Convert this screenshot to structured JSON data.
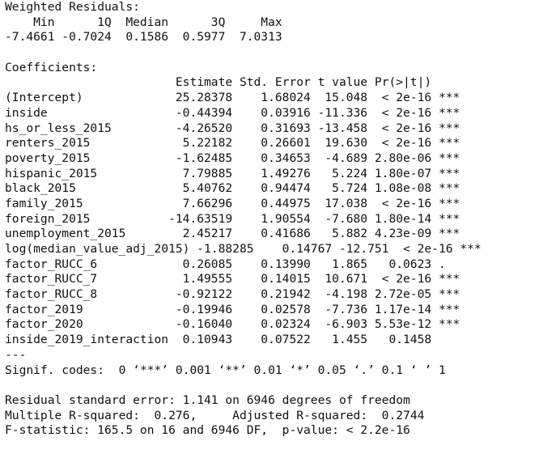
{
  "lines": [
    "Weighted Residuals:",
    "    Min      1Q  Median      3Q     Max ",
    "-7.4661 -0.7024  0.1586  0.5977  7.0313 ",
    "",
    "Coefficients:",
    "                        Estimate Std. Error t value Pr(>|t|)    ",
    "(Intercept)             25.28378    1.68024  15.048  < 2e-16 ***",
    "inside                  -0.44394    0.03916 -11.336  < 2e-16 ***",
    "hs_or_less_2015         -4.26520    0.31693 -13.458  < 2e-16 ***",
    "renters_2015             5.22182    0.26601  19.630  < 2e-16 ***",
    "poverty_2015            -1.62485    0.34653  -4.689 2.80e-06 ***",
    "hispanic_2015            7.79885    1.49276   5.224 1.80e-07 ***",
    "black_2015               5.40762    0.94474   5.724 1.08e-08 ***",
    "family_2015              7.66296    0.44975  17.038  < 2e-16 ***",
    "foreign_2015           -14.63519    1.90554  -7.680 1.80e-14 ***",
    "unemployment_2015        2.45217    0.41686   5.882 4.23e-09 ***",
    "log(median_value_adj_2015) -1.88285    0.14767 -12.751  < 2e-16 ***",
    "factor_RUCC_6            0.26085    0.13990   1.865   0.0623 .  ",
    "factor_RUCC_7            1.49555    0.14015  10.671  < 2e-16 ***",
    "factor_RUCC_8           -0.92122    0.21942  -4.198 2.72e-05 ***",
    "factor_2019             -0.19946    0.02578  -7.736 1.17e-14 ***",
    "factor_2020             -0.16040    0.02324  -6.903 5.53e-12 ***",
    "inside_2019_interaction  0.10943    0.07522   1.455   0.1458    ",
    "---",
    "Signif. codes:  0 ‘***’ 0.001 ‘**’ 0.01 ‘*’ 0.05 ‘.’ 0.1 ‘ ’ 1",
    "",
    "Residual standard error: 1.141 on 6946 degrees of freedom",
    "Multiple R-squared:  0.276,\tAdjusted R-squared:  0.2744 ",
    "F-statistic: 165.5 on 16 and 6946 DF,  p-value: < 2.2e-16"
  ]
}
